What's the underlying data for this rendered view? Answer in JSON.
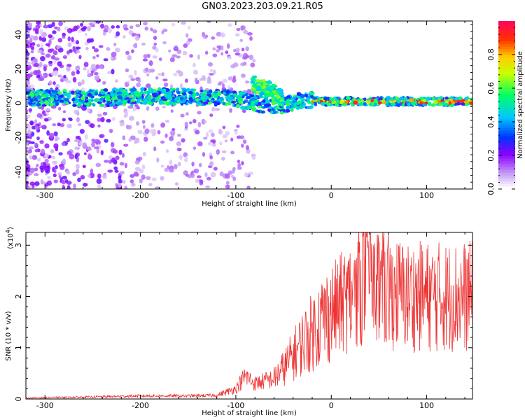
{
  "title": "GN03.2023.203.09.21.R05",
  "chart_data": [
    {
      "type": "heatmap",
      "xlabel": "Height of straight line (km)",
      "ylabel": "Frequency (Hz)",
      "xlim": [
        -320,
        148
      ],
      "ylim": [
        -50,
        48
      ],
      "x_ticks": [
        -300,
        -200,
        -100,
        0,
        100
      ],
      "y_ticks": [
        -40,
        -20,
        0,
        20,
        40
      ],
      "colorbar": {
        "label": "Normalized spectral amplitude",
        "range": [
          0,
          1
        ],
        "ticks": [
          "0.0",
          "0.2",
          "0.4",
          "0.6",
          "0.8"
        ],
        "colors": [
          "#ffffff",
          "#c9a6f5",
          "#8b00ff",
          "#0033ff",
          "#00c8ff",
          "#00ff66",
          "#c8ff00",
          "#ffcc00",
          "#ff3300",
          "#ff0066"
        ]
      },
      "ridges": [
        {
          "x": [
            -320,
            -250,
            -200,
            -150,
            -110,
            -95,
            -80,
            -70,
            -60,
            -50,
            -40,
            -30,
            0,
            50,
            148
          ],
          "y": [
            3,
            3,
            4,
            4,
            3,
            2,
            0,
            -1,
            -1,
            -2,
            1,
            2,
            1,
            1,
            1
          ]
        },
        {
          "x": [
            -83,
            -75,
            -65,
            -58,
            -50
          ],
          "y": [
            12,
            10,
            8,
            5,
            3
          ]
        }
      ]
    },
    {
      "type": "line",
      "xlabel": "Height of straight line (km)",
      "ylabel": "SNR (10 * v/v)",
      "y_exponent": "(x10",
      "y_exponent_power": "4",
      "y_exponent_close": ")",
      "xlim": [
        -320,
        148
      ],
      "ylim": [
        0,
        3.25
      ],
      "x_ticks": [
        -300,
        -200,
        -100,
        0,
        100
      ],
      "y_ticks": [
        0,
        1,
        2,
        3
      ],
      "series_color": "#ee3333",
      "envelope": {
        "x": [
          -320,
          -250,
          -200,
          -150,
          -120,
          -100,
          -90,
          -80,
          -70,
          -60,
          -50,
          -40,
          -30,
          -20,
          -10,
          0,
          10,
          20,
          30,
          40,
          50,
          60,
          70,
          80,
          100,
          120,
          148
        ],
        "y": [
          0.02,
          0.04,
          0.06,
          0.06,
          0.07,
          0.2,
          0.45,
          0.3,
          0.35,
          0.4,
          0.6,
          0.85,
          1.1,
          1.3,
          1.55,
          1.7,
          1.85,
          2.0,
          2.3,
          2.35,
          2.2,
          2.1,
          2.05,
          2.0,
          2.0,
          2.0,
          2.0
        ]
      }
    }
  ]
}
